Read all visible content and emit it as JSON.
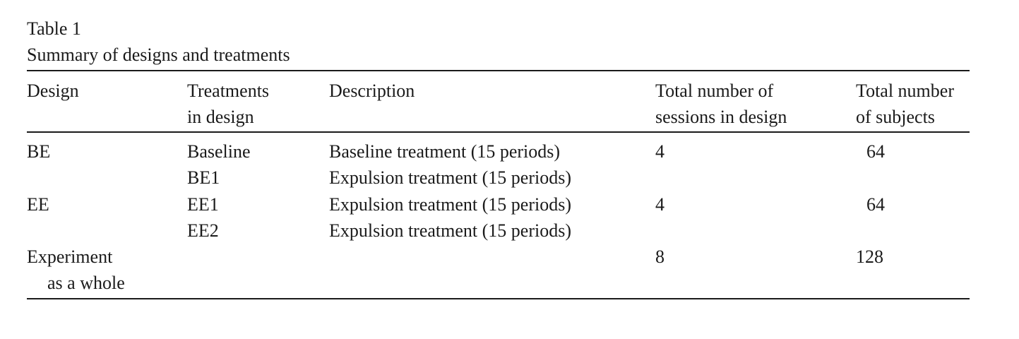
{
  "table": {
    "number": "Table 1",
    "title": "Summary of designs and treatments",
    "headers": {
      "design": "Design",
      "treatments": [
        "Treatments",
        "in design"
      ],
      "description": "Description",
      "sessions": [
        "Total number of",
        "sessions in design"
      ],
      "subjects": [
        "Total number",
        "of subjects"
      ]
    },
    "rows": [
      {
        "design": "BE",
        "treatments": [
          "Baseline",
          "BE1"
        ],
        "descriptions": [
          "Baseline treatment (15 periods)",
          "Expulsion treatment (15 periods)"
        ],
        "sessions": "4",
        "subjects": "64"
      },
      {
        "design": "EE",
        "treatments": [
          "EE1",
          "EE2"
        ],
        "descriptions": [
          "Expulsion treatment (15 periods)",
          "Expulsion treatment (15 periods)"
        ],
        "sessions": "4",
        "subjects": "64"
      },
      {
        "design": [
          "Experiment",
          "as a whole"
        ],
        "sessions": "8",
        "subjects": "128"
      }
    ]
  }
}
